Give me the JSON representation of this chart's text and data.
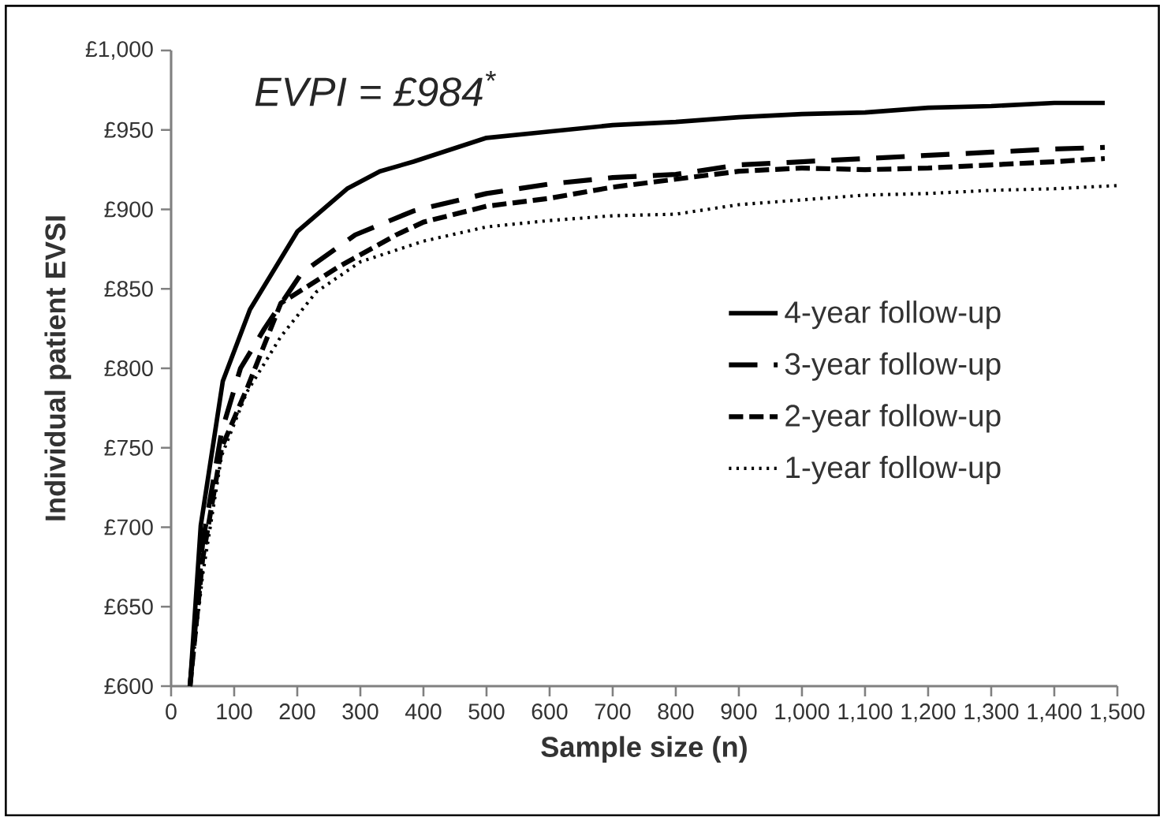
{
  "chart_data": {
    "type": "line",
    "xlabel": "Sample size (n)",
    "ylabel": "Individual patient EVSI",
    "annotations": [
      "EVPI = £984$^{*}$"
    ],
    "xlim": [
      0,
      1500
    ],
    "ylim": [
      600,
      1000
    ],
    "xticks": [
      0,
      100,
      200,
      300,
      400,
      500,
      600,
      700,
      800,
      900,
      {
        "value": 1000,
        "label": "1,000"
      },
      {
        "value": 1100,
        "label": "1,100"
      },
      {
        "value": 1200,
        "label": "1,200"
      },
      {
        "value": 1300,
        "label": "1,300"
      },
      {
        "value": 1400,
        "label": "1,400"
      },
      {
        "value": 1500,
        "label": "1,500"
      }
    ],
    "yticks": [
      {
        "value": 600,
        "label": "£600"
      },
      {
        "value": 650,
        "label": "£650"
      },
      {
        "value": 700,
        "label": "£700"
      },
      {
        "value": 750,
        "label": "£750"
      },
      {
        "value": 800,
        "label": "£800"
      },
      {
        "value": 850,
        "label": "£850"
      },
      {
        "value": 900,
        "label": "£900"
      },
      {
        "value": 950,
        "label": "£950"
      },
      {
        "value": 1000,
        "label": "£1,000"
      }
    ],
    "grid": false,
    "legend": "right",
    "marker": "none",
    "series": [
      {
        "name": "4-year follow-up",
        "color": "#000000",
        "line_style": "solid",
        "x": [
          30,
          47,
          82,
          125,
          200,
          279,
          331,
          384,
          500,
          600,
          700,
          800,
          900,
          1000,
          1100,
          1200,
          1300,
          1400,
          1480
        ],
        "values": [
          600,
          701,
          792,
          837,
          886,
          913,
          924,
          930,
          945,
          949,
          953,
          955,
          958,
          960,
          961,
          964,
          965,
          967,
          967
        ]
      },
      {
        "name": "3-year follow-up",
        "color": "#000000",
        "line_style": "dashed",
        "x": [
          30,
          50,
          80,
          110,
          148,
          207,
          292,
          384,
          500,
          600,
          700,
          800,
          900,
          1000,
          1100,
          1200,
          1300,
          1400,
          1480
        ],
        "values": [
          600,
          690,
          760,
          800,
          825,
          860,
          884,
          899,
          910,
          916,
          920,
          922,
          928,
          930,
          932,
          934,
          936,
          938,
          939
        ]
      },
      {
        "name": "2-year follow-up",
        "color": "#000000",
        "line_style": "dashed",
        "x": [
          30,
          50,
          80,
          122,
          174,
          266,
          357,
          400,
          500,
          600,
          700,
          800,
          900,
          1000,
          1100,
          1200,
          1300,
          1400,
          1480
        ],
        "values": [
          600,
          680,
          750,
          789,
          841,
          864,
          884,
          892,
          902,
          907,
          914,
          919,
          924,
          926,
          925,
          926,
          928,
          930,
          932
        ]
      },
      {
        "name": "1-year follow-up",
        "color": "#000000",
        "line_style": "dotted",
        "x": [
          30,
          50,
          80,
          120,
          174,
          230,
          300,
          400,
          500,
          600,
          700,
          800,
          900,
          1000,
          1100,
          1200,
          1300,
          1400,
          1500
        ],
        "values": [
          600,
          670,
          745,
          785,
          820,
          848,
          867,
          880,
          889,
          893,
          896,
          897,
          903,
          906,
          909,
          910,
          912,
          913,
          915
        ]
      }
    ]
  }
}
